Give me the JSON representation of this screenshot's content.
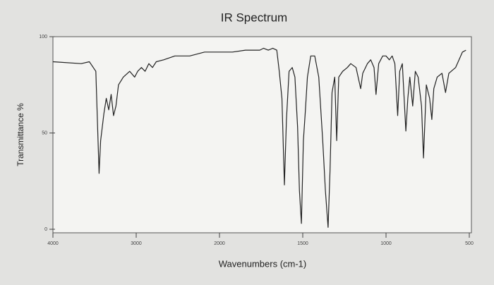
{
  "chart_data": {
    "type": "line",
    "title": "IR Spectrum",
    "x_label": "Wavenumbers (cm-1)",
    "y_label": "Transmittance %",
    "xlim": [
      4000,
      500
    ],
    "xticks": [
      4000,
      3000,
      2000,
      1500,
      1000,
      500
    ],
    "ylim": [
      0,
      100
    ],
    "yticks": [
      0,
      50,
      100
    ],
    "grid": false,
    "series": [
      {
        "color": "#222222",
        "x": [
          4000,
          3660,
          3563,
          3485,
          3446,
          3427,
          3388,
          3359,
          3330,
          3301,
          3272,
          3243,
          3213,
          3155,
          3078,
          3019,
          2982,
          2937,
          2893,
          2848,
          2804,
          2759,
          2670,
          2536,
          2357,
          2179,
          2000,
          1922,
          1844,
          1785,
          1758,
          1735,
          1707,
          1680,
          1656,
          1641,
          1625,
          1610,
          1598,
          1582,
          1563,
          1547,
          1531,
          1520,
          1508,
          1496,
          1484,
          1472,
          1452,
          1428,
          1404,
          1380,
          1364,
          1348,
          1336,
          1324,
          1308,
          1296,
          1284,
          1260,
          1232,
          1212,
          1180,
          1152,
          1140,
          1112,
          1092,
          1072,
          1060,
          1044,
          1020,
          1000,
          980,
          963,
          947,
          930,
          918,
          902,
          881,
          869,
          857,
          840,
          824,
          807,
          787,
          775,
          758,
          738,
          725,
          713,
          693,
          664,
          643,
          623,
          582,
          541,
          520
        ],
        "values": [
          87,
          86,
          87,
          82,
          29,
          46,
          60,
          68,
          62,
          70,
          59,
          64,
          75,
          79,
          82,
          79,
          82,
          84,
          82,
          86,
          84,
          87,
          88,
          90,
          90,
          92,
          92,
          92,
          93,
          93,
          93,
          94,
          93,
          94,
          93,
          82,
          68,
          23,
          57,
          82,
          84,
          79,
          53,
          20,
          3,
          46,
          62,
          79,
          90,
          90,
          79,
          46,
          20,
          1,
          31,
          71,
          79,
          46,
          79,
          82,
          84,
          86,
          84,
          73,
          81,
          86,
          88,
          84,
          70,
          86,
          90,
          90,
          88,
          90,
          86,
          59,
          82,
          86,
          51,
          68,
          79,
          64,
          82,
          79,
          64,
          37,
          75,
          68,
          57,
          73,
          79,
          81,
          71,
          81,
          84,
          92,
          93
        ]
      }
    ]
  }
}
